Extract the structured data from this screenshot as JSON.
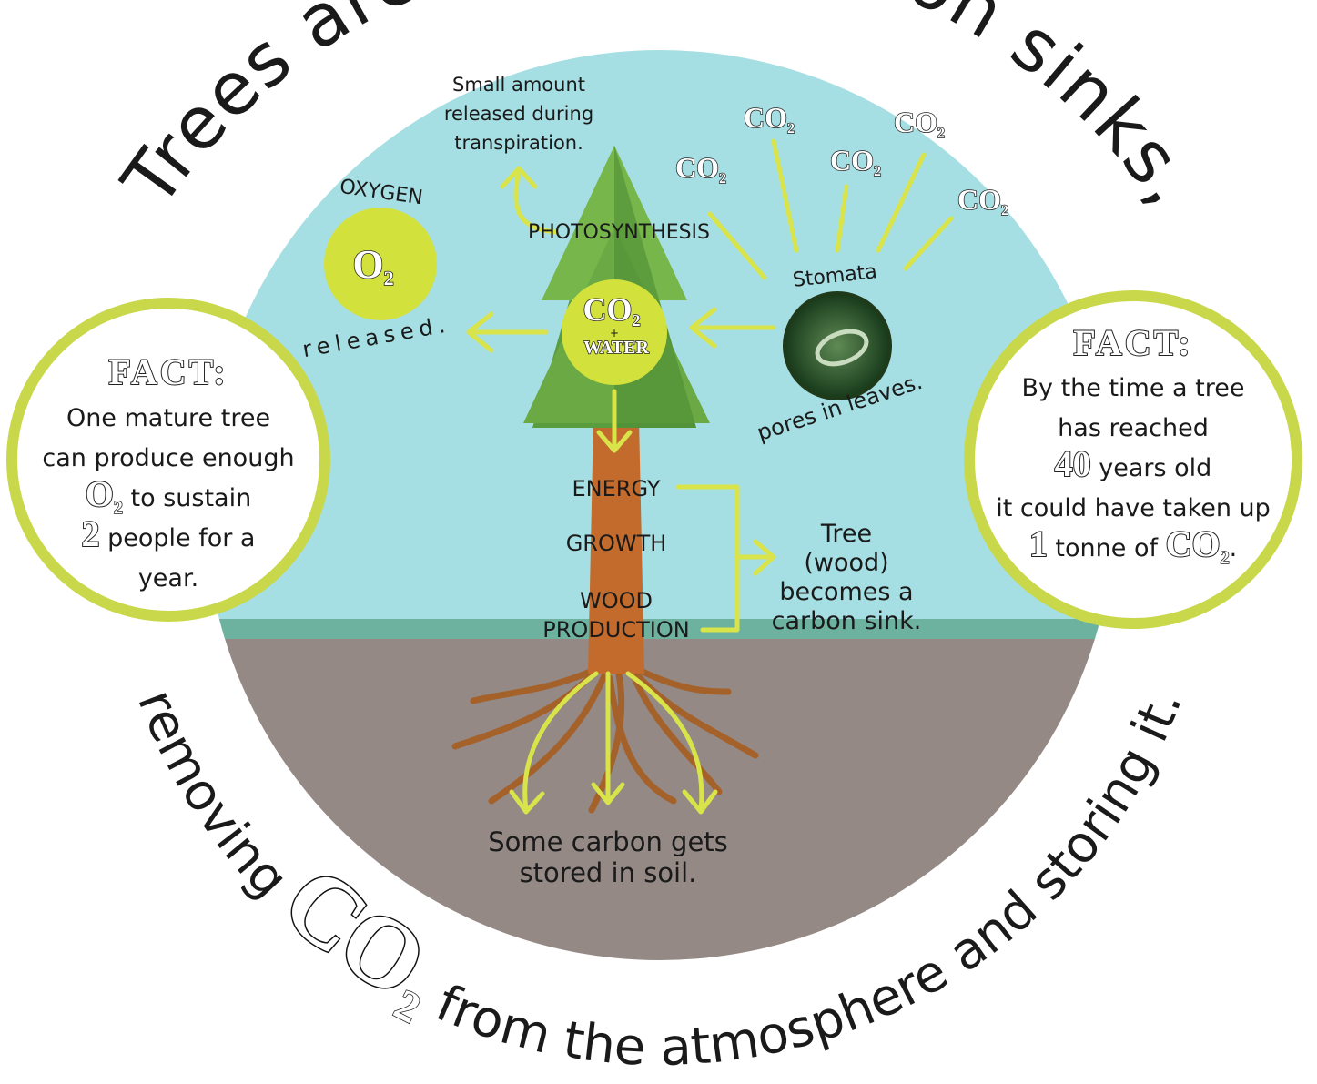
{
  "title_top": "Trees are natural carbon sinks,",
  "title_bottom": {
    "before": "removing ",
    "co": "CO",
    "sub": "2",
    "after": " from the atmosphere and storing it."
  },
  "transpiration": [
    "Small amount",
    "released during",
    "transpiration."
  ],
  "oxygen": {
    "label": "OXYGEN",
    "symbol": "O",
    "sub": "2",
    "released": "released."
  },
  "photosynthesis": "PHOTOSYNTHESIS",
  "center": {
    "co": "CO",
    "sub": "2",
    "plus": "+",
    "water": "WATER"
  },
  "co2_floating": [
    {
      "co": "CO",
      "sub": "2"
    },
    {
      "co": "CO",
      "sub": "2"
    },
    {
      "co": "CO",
      "sub": "2"
    },
    {
      "co": "CO",
      "sub": "2"
    },
    {
      "co": "CO",
      "sub": "2"
    }
  ],
  "stomata": {
    "label": "Stomata",
    "caption": "pores in leaves."
  },
  "processes": [
    "ENERGY",
    "GROWTH",
    "WOOD",
    "PRODUCTION"
  ],
  "sink": [
    "Tree",
    "(wood)",
    "becomes a",
    "carbon sink."
  ],
  "soil": [
    "Some carbon gets",
    "stored in soil."
  ],
  "fact_left": {
    "heading": "FACT:",
    "lines": [
      [
        {
          "text": "One mature tree",
          "kind": "plain"
        }
      ],
      [
        {
          "text": "can produce enough",
          "kind": "plain"
        }
      ],
      [
        {
          "text": "O",
          "kind": "big"
        },
        {
          "text": "2",
          "kind": "sub"
        },
        {
          "text": " to sustain",
          "kind": "plain"
        }
      ],
      [
        {
          "text": "2",
          "kind": "big"
        },
        {
          "text": " people for a",
          "kind": "plain"
        }
      ],
      [
        {
          "text": "year.",
          "kind": "plain"
        }
      ]
    ]
  },
  "fact_right": {
    "heading": "FACT:",
    "lines": [
      [
        {
          "text": "By the time a tree",
          "kind": "plain"
        }
      ],
      [
        {
          "text": "has reached",
          "kind": "plain"
        }
      ],
      [
        {
          "text": "40",
          "kind": "big"
        },
        {
          "text": " years old",
          "kind": "plain"
        }
      ],
      [
        {
          "text": "it could have taken up",
          "kind": "plain"
        }
      ],
      [
        {
          "text": "1",
          "kind": "big"
        },
        {
          "text": " tonne of ",
          "kind": "plain"
        },
        {
          "text": "CO",
          "kind": "big"
        },
        {
          "text": "2",
          "kind": "sub"
        },
        {
          "text": ".",
          "kind": "plain"
        }
      ]
    ]
  }
}
